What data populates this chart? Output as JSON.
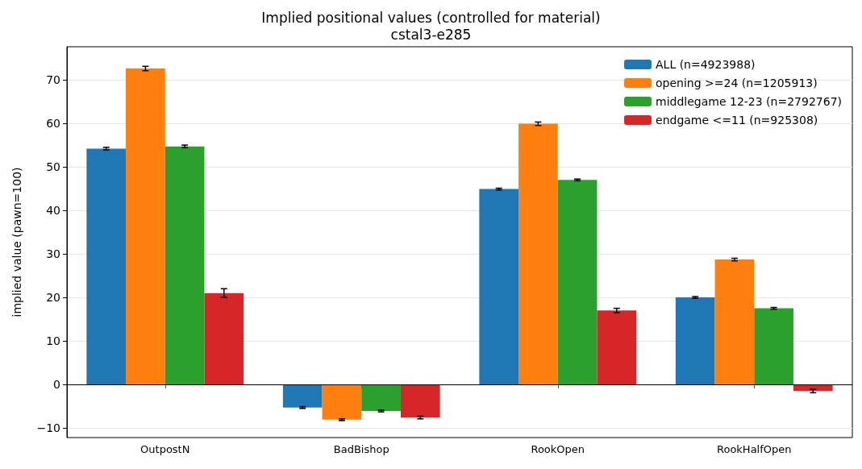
{
  "chart_data": {
    "type": "bar",
    "title": "Implied positional values (controlled for material)",
    "subtitle": "cstal3-e285",
    "ylabel": "implied value (pawn=100)",
    "categories": [
      "OutpostN",
      "BadBishop",
      "RookOpen",
      "RookHalfOpen"
    ],
    "series": [
      {
        "name": "ALL (n=4923988)",
        "color": "#1f77b4",
        "values": [
          54.2,
          -5.3,
          44.9,
          20.0
        ],
        "errors": [
          0.3,
          0.2,
          0.2,
          0.2
        ]
      },
      {
        "name": "opening >=24 (n=1205913)",
        "color": "#ff7f0e",
        "values": [
          72.6,
          -8.1,
          59.9,
          28.7
        ],
        "errors": [
          0.5,
          0.2,
          0.4,
          0.3
        ]
      },
      {
        "name": "middlegame 12-23 (n=2792767)",
        "color": "#2ca02c",
        "values": [
          54.7,
          -6.1,
          47.0,
          17.5
        ],
        "errors": [
          0.3,
          0.2,
          0.2,
          0.2
        ]
      },
      {
        "name": "endgame <=11 (n=925308)",
        "color": "#d62728",
        "values": [
          21.0,
          -7.6,
          17.0,
          -1.5
        ],
        "errors": [
          1.0,
          0.3,
          0.5,
          0.4
        ]
      }
    ],
    "ylim": [
      -12.2,
      77.6
    ],
    "yticks": [
      -10,
      0,
      10,
      20,
      30,
      40,
      50,
      60,
      70
    ],
    "grid": "y",
    "legend": "top right",
    "ref_lines": [
      {
        "axis": "y",
        "value": 0,
        "color": "#000000"
      }
    ]
  }
}
